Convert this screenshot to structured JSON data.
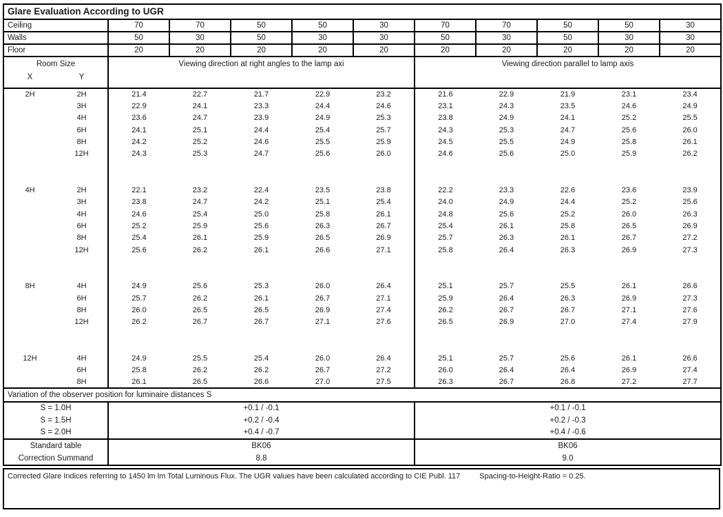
{
  "title": "Glare Evaluation According to UGR",
  "surface_rows": [
    {
      "label": "Ceiling",
      "values": [
        "70",
        "70",
        "50",
        "50",
        "30",
        "70",
        "70",
        "50",
        "50",
        "30"
      ]
    },
    {
      "label": "Walls",
      "values": [
        "50",
        "30",
        "50",
        "30",
        "30",
        "50",
        "30",
        "50",
        "30",
        "30"
      ]
    },
    {
      "label": "Floor",
      "values": [
        "20",
        "20",
        "20",
        "20",
        "20",
        "20",
        "20",
        "20",
        "20",
        "20"
      ]
    }
  ],
  "room_size_header": {
    "title": "Room Size",
    "x_label": "X",
    "y_label": "Y"
  },
  "direction_headers": {
    "left": "Viewing direction at right angles to the lamp axi",
    "right": "Viewing direction parallel to lamp axis"
  },
  "ugr_groups": [
    {
      "x": "2H",
      "rows": [
        {
          "y": "2H",
          "values": [
            "21.4",
            "22.7",
            "21.7",
            "22.9",
            "23.2",
            "21.6",
            "22.9",
            "21.9",
            "23.1",
            "23.4"
          ]
        },
        {
          "y": "3H",
          "values": [
            "22.9",
            "24.1",
            "23.3",
            "24.4",
            "24.6",
            "23.1",
            "24.3",
            "23.5",
            "24.6",
            "24.9"
          ]
        },
        {
          "y": "4H",
          "values": [
            "23.6",
            "24.7",
            "23.9",
            "24.9",
            "25.3",
            "23.8",
            "24.9",
            "24.1",
            "25.2",
            "25.5"
          ]
        },
        {
          "y": "6H",
          "values": [
            "24.1",
            "25.1",
            "24.4",
            "25.4",
            "25.7",
            "24.3",
            "25.3",
            "24.7",
            "25.6",
            "26.0"
          ]
        },
        {
          "y": "8H",
          "values": [
            "24.2",
            "25.2",
            "24.6",
            "25.5",
            "25.9",
            "24.5",
            "25.5",
            "24.9",
            "25.8",
            "26.1"
          ]
        },
        {
          "y": "12H",
          "values": [
            "24.3",
            "25.3",
            "24.7",
            "25.6",
            "26.0",
            "24.6",
            "25.6",
            "25.0",
            "25.9",
            "26.2"
          ]
        }
      ]
    },
    {
      "x": "4H",
      "rows": [
        {
          "y": "2H",
          "values": [
            "22.1",
            "23.2",
            "22.4",
            "23.5",
            "23.8",
            "22.2",
            "23.3",
            "22.6",
            "23.6",
            "23.9"
          ]
        },
        {
          "y": "3H",
          "values": [
            "23.8",
            "24.7",
            "24.2",
            "25.1",
            "25.4",
            "24.0",
            "24.9",
            "24.4",
            "25.2",
            "25.6"
          ]
        },
        {
          "y": "4H",
          "values": [
            "24.6",
            "25.4",
            "25.0",
            "25.8",
            "26.1",
            "24.8",
            "25.6",
            "25.2",
            "26.0",
            "26.3"
          ]
        },
        {
          "y": "6H",
          "values": [
            "25.2",
            "25.9",
            "25.6",
            "26.3",
            "26.7",
            "25.4",
            "26.1",
            "25.8",
            "26.5",
            "26.9"
          ]
        },
        {
          "y": "8H",
          "values": [
            "25.4",
            "26.1",
            "25.9",
            "26.5",
            "26.9",
            "25.7",
            "26.3",
            "26.1",
            "26.7",
            "27.2"
          ]
        },
        {
          "y": "12H",
          "values": [
            "25.6",
            "26.2",
            "26.1",
            "26.6",
            "27.1",
            "25.8",
            "26.4",
            "26.3",
            "26.9",
            "27.3"
          ]
        }
      ]
    },
    {
      "x": "8H",
      "rows": [
        {
          "y": "4H",
          "values": [
            "24.9",
            "25.6",
            "25.3",
            "26.0",
            "26.4",
            "25.1",
            "25.7",
            "25.5",
            "26.1",
            "26.6"
          ]
        },
        {
          "y": "6H",
          "values": [
            "25.7",
            "26.2",
            "26.1",
            "26.7",
            "27.1",
            "25.9",
            "26.4",
            "26.3",
            "26.9",
            "27.3"
          ]
        },
        {
          "y": "8H",
          "values": [
            "26.0",
            "26.5",
            "26.5",
            "26.9",
            "27.4",
            "26.2",
            "26.7",
            "26.7",
            "27.1",
            "27.6"
          ]
        },
        {
          "y": "12H",
          "values": [
            "26.2",
            "26.7",
            "26.7",
            "27.1",
            "27.6",
            "26.5",
            "26.9",
            "27.0",
            "27.4",
            "27.9"
          ]
        }
      ]
    },
    {
      "x": "12H",
      "rows": [
        {
          "y": "4H",
          "values": [
            "24.9",
            "25.5",
            "25.4",
            "26.0",
            "26.4",
            "25.1",
            "25.7",
            "25.6",
            "26.1",
            "26.6"
          ]
        },
        {
          "y": "6H",
          "values": [
            "25.8",
            "26.2",
            "26.2",
            "26.7",
            "27.2",
            "26.0",
            "26.4",
            "26.4",
            "26.9",
            "27.4"
          ]
        },
        {
          "y": "8H",
          "values": [
            "26.1",
            "26.5",
            "26.6",
            "27.0",
            "27.5",
            "26.3",
            "26.7",
            "26.8",
            "27.2",
            "27.7"
          ]
        }
      ]
    }
  ],
  "variation": {
    "title": "Variation of the observer position for luminaire distances S",
    "rows": [
      {
        "label": "S = 1.0H",
        "left": "+0.1 / -0.1",
        "right": "+0.1 / -0.1"
      },
      {
        "label": "S = 1.5H",
        "left": "+0.2 / -0.4",
        "right": "+0.2 / -0.3"
      },
      {
        "label": "S = 2.0H",
        "left": "+0.4 / -0.7",
        "right": "+0.4 / -0.6"
      }
    ]
  },
  "summary_rows": [
    {
      "label": "Standard table",
      "left": "BK06",
      "right": "BK06"
    },
    {
      "label": "Correction Summand",
      "left": "8.8",
      "right": "9.0"
    }
  ],
  "footer": {
    "text1": "Corrected Glare Indices referring to 1450 lm lm Total Luminous Flux. The UGR values have been calculated according to CIE Publ. 117",
    "text2": "Spacing-to-Height-Ratio = 0.25."
  }
}
